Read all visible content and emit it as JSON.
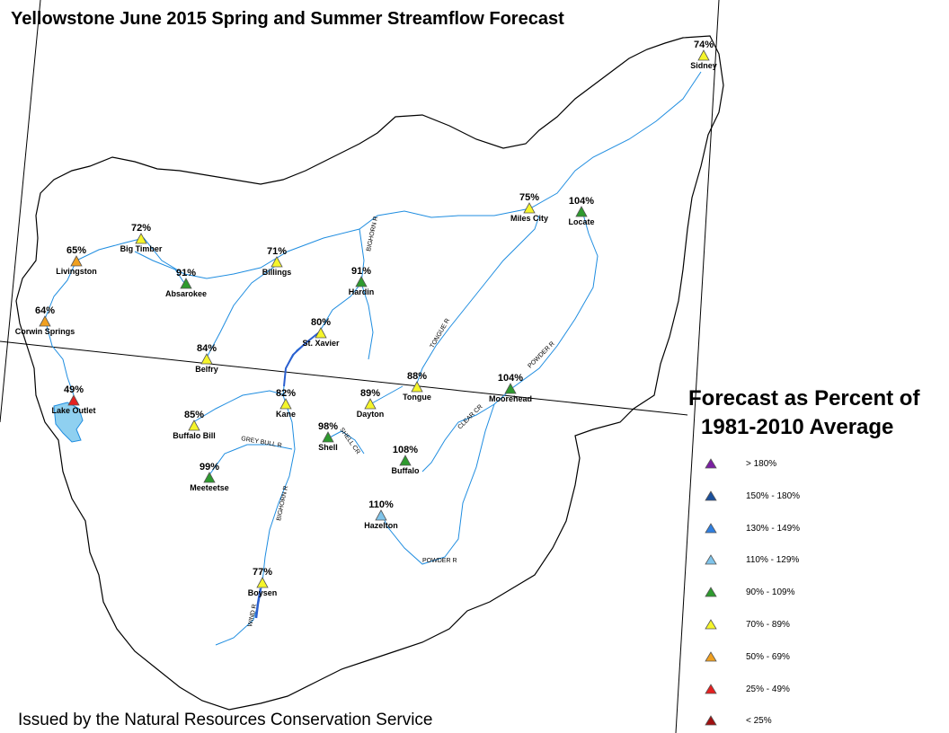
{
  "title": "Yellowstone June 2015 Spring and Summer Streamflow Forecast",
  "footer": "Issued by the Natural Resources Conservation Service",
  "legend": {
    "title_line1": "Forecast as Percent of",
    "title_line2": "1981-2010 Average",
    "items": [
      {
        "label": "> 180%",
        "color": "#7b1fa2"
      },
      {
        "label": "150% - 180%",
        "color": "#1a4f9c"
      },
      {
        "label": "130% - 149%",
        "color": "#2f7fe0"
      },
      {
        "label": "110% - 129%",
        "color": "#7fc4ea"
      },
      {
        "label": "90% - 109%",
        "color": "#2e9a2e"
      },
      {
        "label": "70% - 89%",
        "color": "#f5f52a"
      },
      {
        "label": "50% - 69%",
        "color": "#f0a020"
      },
      {
        "label": "25% - 49%",
        "color": "#e52020"
      },
      {
        "label": "< 25%",
        "color": "#a01010"
      }
    ]
  },
  "sites": [
    {
      "name": "Sidney",
      "pct": "74%",
      "color": "#f5f52a"
    },
    {
      "name": "Miles City",
      "pct": "75%",
      "color": "#f5f52a"
    },
    {
      "name": "Locate",
      "pct": "104%",
      "color": "#2e9a2e"
    },
    {
      "name": "Big Timber",
      "pct": "72%",
      "color": "#f5f52a"
    },
    {
      "name": "Livingston",
      "pct": "65%",
      "color": "#f0a020"
    },
    {
      "name": "Absarokee",
      "pct": "91%",
      "color": "#2e9a2e"
    },
    {
      "name": "Billings",
      "pct": "71%",
      "color": "#f5f52a"
    },
    {
      "name": "Hardin",
      "pct": "91%",
      "color": "#2e9a2e"
    },
    {
      "name": "Corwin Springs",
      "pct": "64%",
      "color": "#f0a020"
    },
    {
      "name": "St. Xavier",
      "pct": "80%",
      "color": "#f5f52a"
    },
    {
      "name": "Belfry",
      "pct": "84%",
      "color": "#f5f52a"
    },
    {
      "name": "Lake Outlet",
      "pct": "49%",
      "color": "#e52020"
    },
    {
      "name": "Kane",
      "pct": "82%",
      "color": "#f5f52a"
    },
    {
      "name": "Tongue",
      "pct": "88%",
      "color": "#f5f52a"
    },
    {
      "name": "Moorehead",
      "pct": "104%",
      "color": "#2e9a2e"
    },
    {
      "name": "Dayton",
      "pct": "89%",
      "color": "#f5f52a"
    },
    {
      "name": "Buffalo Bill",
      "pct": "85%",
      "color": "#f5f52a"
    },
    {
      "name": "Shell",
      "pct": "98%",
      "color": "#2e9a2e"
    },
    {
      "name": "Buffalo",
      "pct": "108%",
      "color": "#2e9a2e"
    },
    {
      "name": "Meeteetse",
      "pct": "99%",
      "color": "#2e9a2e"
    },
    {
      "name": "Hazelton",
      "pct": "110%",
      "color": "#7fc4ea"
    },
    {
      "name": "Boysen",
      "pct": "77%",
      "color": "#f5f52a"
    }
  ],
  "river_labels": [
    "BIGHORN R",
    "TONGUE R",
    "POWDER R",
    "CLEAR CR",
    "SHELL CR",
    "GREY BULL R",
    "BIGHORN R",
    "POWDER R",
    "WIND R"
  ]
}
